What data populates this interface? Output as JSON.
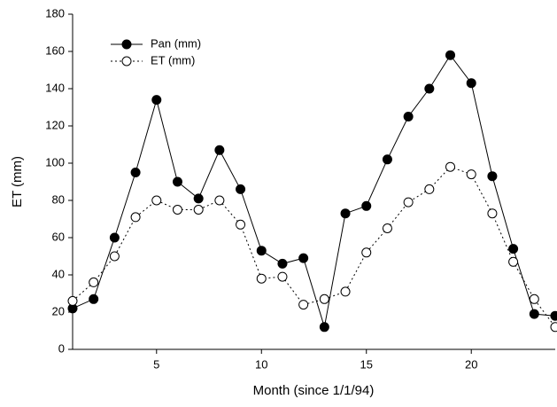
{
  "chart_data": {
    "type": "line",
    "x_label": "Month (since 1/1/94)",
    "y_label": "ET (mm)",
    "x": [
      1,
      2,
      3,
      4,
      5,
      6,
      7,
      8,
      9,
      10,
      11,
      12,
      13,
      14,
      15,
      16,
      17,
      18,
      19,
      20,
      21,
      22,
      23,
      24
    ],
    "series": [
      {
        "name": "Pan (mm)",
        "color": "#000000",
        "marker": "filled",
        "dash": "solid",
        "values": [
          22,
          27,
          60,
          95,
          134,
          90,
          81,
          107,
          86,
          53,
          46,
          49,
          12,
          73,
          77,
          102,
          125,
          140,
          158,
          143,
          93,
          54,
          19,
          18
        ]
      },
      {
        "name": "ET (mm)",
        "color": "#000000",
        "marker": "open",
        "dash": "dotted",
        "values": [
          26,
          36,
          50,
          71,
          80,
          75,
          75,
          80,
          67,
          38,
          39,
          24,
          27,
          31,
          52,
          65,
          79,
          86,
          98,
          94,
          73,
          47,
          27,
          12
        ]
      }
    ],
    "xlim": [
      1,
      24
    ],
    "xticks": [
      5,
      10,
      15,
      20
    ],
    "ylim": [
      0,
      180
    ],
    "yticks": [
      0,
      20,
      40,
      60,
      80,
      100,
      120,
      140,
      160,
      180
    ],
    "legend": "upper left"
  }
}
